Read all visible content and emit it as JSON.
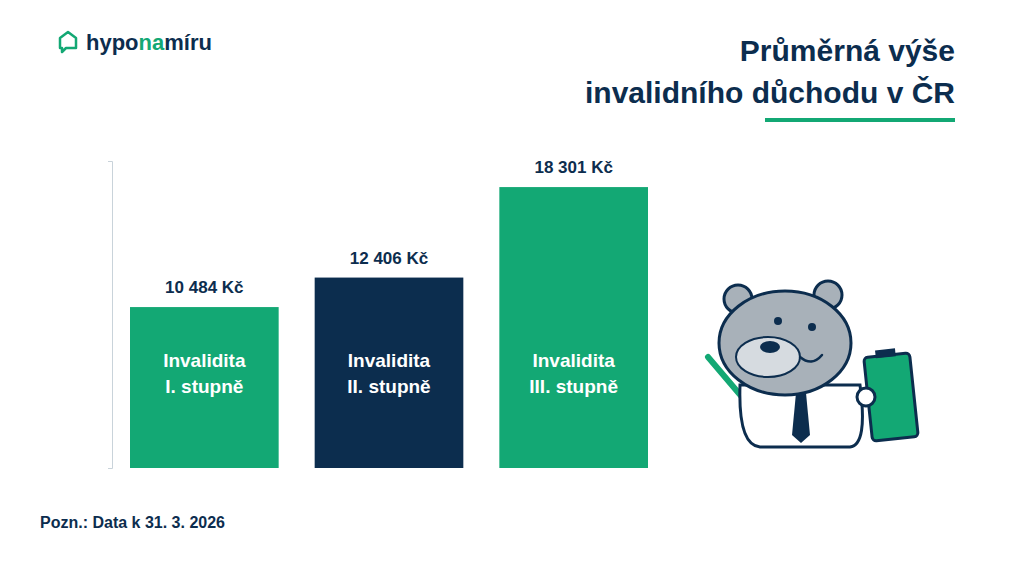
{
  "logo": [
    "hypo",
    "na",
    "míru"
  ],
  "chart_data": {
    "type": "bar",
    "title": "Průměrná výše invalidního důchodu v ČR",
    "categories": [
      "Invalidita I. stupně",
      "Invalidita II. stupně",
      "Invalidita III. stupně"
    ],
    "values": [
      10484,
      12406,
      18301
    ],
    "value_labels": [
      "10 484 Kč",
      "12 406 Kč",
      "18 301 Kč"
    ],
    "colors": [
      "#13a874",
      "#0c2d4e",
      "#13a874"
    ],
    "ylim": [
      0,
      20000
    ],
    "yticks": [
      0,
      20000
    ],
    "tick_labels": false,
    "grid": false,
    "data_labels": true,
    "annotations": [
      "Pozn.: Data k 31. 3. 2026"
    ]
  }
}
